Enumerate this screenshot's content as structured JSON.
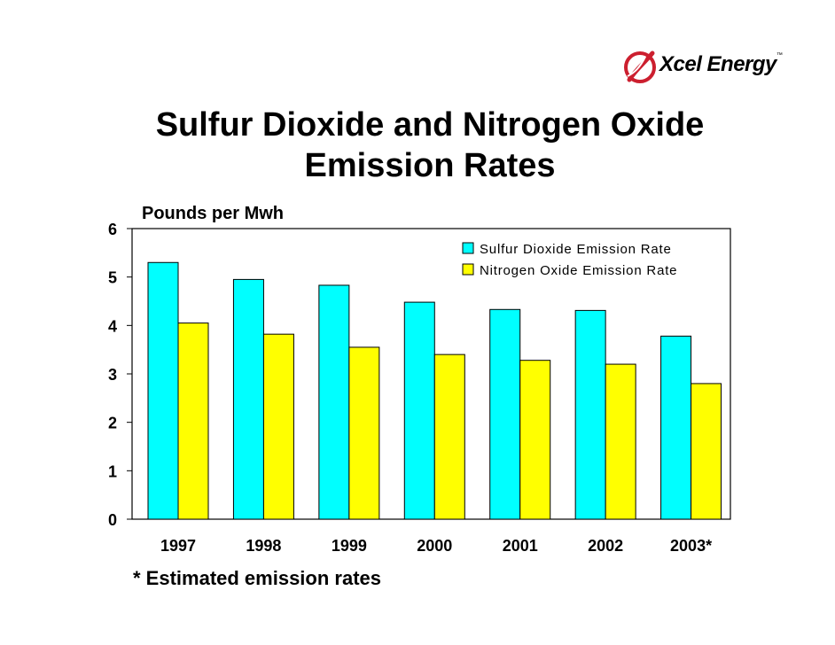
{
  "logo": {
    "brand_text": "Xcel Energy",
    "trademark": "™"
  },
  "title": "Sulfur Dioxide and Nitrogen Oxide Emission Rates",
  "footnote": "* Estimated emission rates",
  "colors": {
    "sulfur": "#00ffff",
    "nitrogen": "#ffff00",
    "logo_red": "#cc1f2f"
  },
  "chart_data": {
    "type": "bar",
    "ylabel": "Pounds per Mwh",
    "xlabel": "",
    "categories": [
      "1997",
      "1998",
      "1999",
      "2000",
      "2001",
      "2002",
      "2003*"
    ],
    "series": [
      {
        "name": "Sulfur Dioxide Emission Rate",
        "values": [
          5.3,
          4.95,
          4.83,
          4.48,
          4.33,
          4.31,
          3.78
        ]
      },
      {
        "name": "Nitrogen Oxide Emission Rate",
        "values": [
          4.05,
          3.82,
          3.55,
          3.4,
          3.28,
          3.2,
          2.8
        ]
      }
    ],
    "ylim": [
      0,
      6
    ],
    "yticks": [
      0,
      1,
      2,
      3,
      4,
      5,
      6
    ],
    "grid": false,
    "legend": "top-right"
  }
}
